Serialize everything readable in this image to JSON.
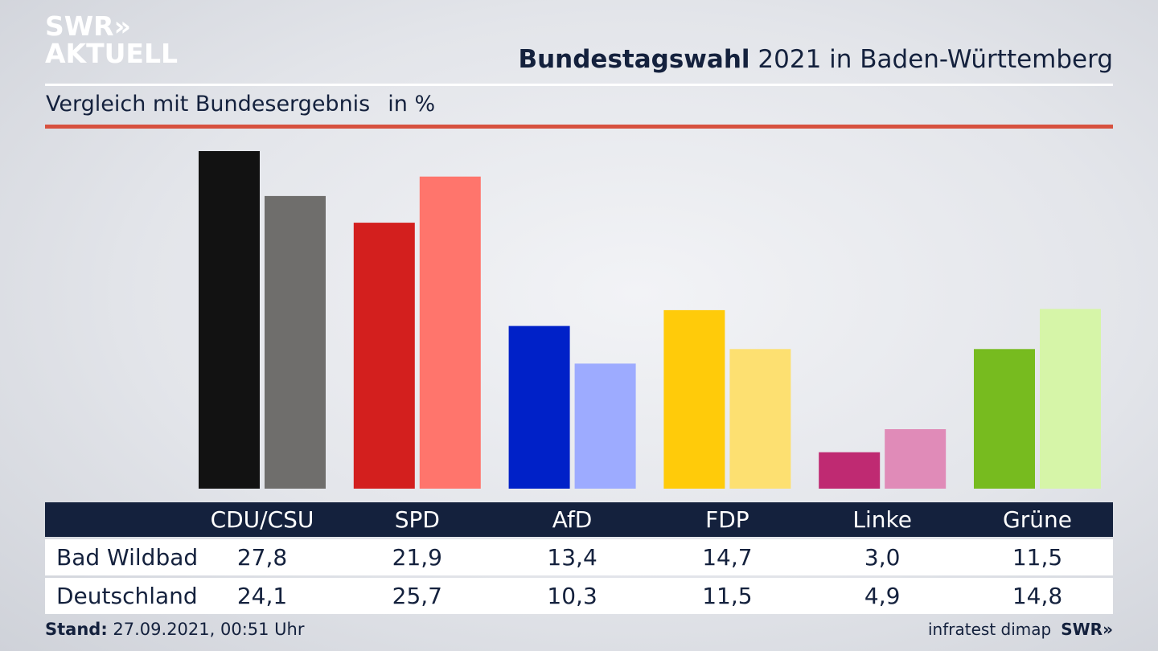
{
  "brand": {
    "line1": "SWR»",
    "line2": "AKTUELL"
  },
  "header": {
    "title_bold": "Bundestagswahl",
    "title_rest": " 2021 in Baden-Württemberg",
    "subtitle": "Vergleich mit Bundesergebnis",
    "unit": "in %"
  },
  "chart_data": {
    "type": "bar",
    "title": "Bundestagswahl 2021 in Baden-Württemberg",
    "subtitle": "Vergleich mit Bundesergebnis in %",
    "categories": [
      "CDU/CSU",
      "SPD",
      "AfD",
      "FDP",
      "Linke",
      "Grüne"
    ],
    "series": [
      {
        "name": "Bad Wildbad",
        "values": [
          27.8,
          21.9,
          13.4,
          14.7,
          3.0,
          11.5
        ],
        "colors": [
          "#121212",
          "#d31f1e",
          "#0021c8",
          "#ffcb0a",
          "#bf2a72",
          "#77bb1f"
        ]
      },
      {
        "name": "Deutschland",
        "values": [
          24.1,
          25.7,
          10.3,
          11.5,
          4.9,
          14.8
        ],
        "colors": [
          "#6f6e6c",
          "#ff756c",
          "#9dabff",
          "#fde071",
          "#e08bb8",
          "#d6f5a8"
        ]
      }
    ],
    "ylim": [
      0,
      27.8
    ]
  },
  "table": {
    "headers": [
      "CDU/CSU",
      "SPD",
      "AfD",
      "FDP",
      "Linke",
      "Grüne"
    ],
    "rows": [
      {
        "label": "Bad Wildbad",
        "values": [
          "27,8",
          "21,9",
          "13,4",
          "14,7",
          "3,0",
          "11,5"
        ]
      },
      {
        "label": "Deutschland",
        "values": [
          "24,1",
          "25,7",
          "10,3",
          "11,5",
          "4,9",
          "14,8"
        ]
      }
    ]
  },
  "footer": {
    "stand_label": "Stand:",
    "stand_value": " 27.09.2021, 00:51 Uhr",
    "source": "infratest dimap",
    "source_logo": "SWR»"
  }
}
